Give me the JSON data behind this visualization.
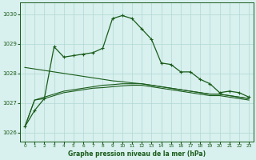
{
  "title": "Graphe pression niveau de la mer (hPa)",
  "background_color": "#d8f0ee",
  "grid_color": "#b0d8d4",
  "line_color": "#1a5c1a",
  "x_ticks": [
    0,
    1,
    2,
    3,
    4,
    5,
    6,
    7,
    8,
    9,
    10,
    11,
    12,
    13,
    14,
    15,
    16,
    17,
    18,
    19,
    20,
    21,
    22,
    23
  ],
  "ylim": [
    1025.7,
    1030.4
  ],
  "yticks": [
    1026,
    1027,
    1028,
    1029,
    1030
  ],
  "series_jagged": [
    1026.2,
    1026.75,
    1027.15,
    1028.9,
    1028.55,
    1028.6,
    1028.65,
    1028.7,
    1028.85,
    1029.85,
    1029.95,
    1029.85,
    1029.5,
    1029.15,
    1028.35,
    1028.3,
    1028.05,
    1028.05,
    1027.8,
    1027.65,
    1027.35,
    1027.4,
    1027.35,
    1027.2
  ],
  "series_diagonal": [
    1028.2,
    1028.15,
    1028.1,
    1028.05,
    1028.0,
    1027.95,
    1027.9,
    1027.85,
    1027.8,
    1027.75,
    1027.72,
    1027.68,
    1027.65,
    1027.6,
    1027.55,
    1027.5,
    1027.45,
    1027.4,
    1027.35,
    1027.3,
    1027.3,
    1027.25,
    1027.2,
    1027.15
  ],
  "series_smooth1": [
    1026.2,
    1027.1,
    1027.2,
    1027.3,
    1027.4,
    1027.45,
    1027.5,
    1027.55,
    1027.6,
    1027.62,
    1027.65,
    1027.65,
    1027.65,
    1027.6,
    1027.55,
    1027.5,
    1027.45,
    1027.4,
    1027.35,
    1027.3,
    1027.3,
    1027.25,
    1027.2,
    1027.15
  ],
  "series_smooth2": [
    1026.2,
    1027.1,
    1027.15,
    1027.25,
    1027.35,
    1027.4,
    1027.45,
    1027.5,
    1027.52,
    1027.55,
    1027.58,
    1027.6,
    1027.6,
    1027.55,
    1027.5,
    1027.45,
    1027.4,
    1027.35,
    1027.3,
    1027.25,
    1027.25,
    1027.2,
    1027.15,
    1027.1
  ]
}
